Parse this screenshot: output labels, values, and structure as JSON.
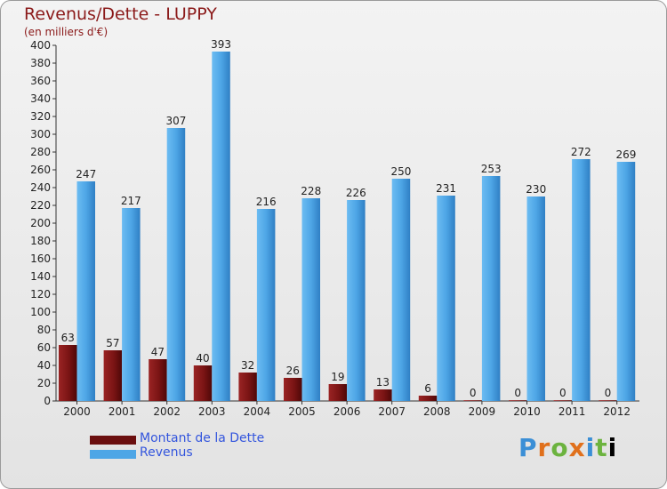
{
  "chart_data": {
    "type": "bar",
    "title": "Revenus/Dette - LUPPY",
    "subtitle": "(en milliers d'€)",
    "categories": [
      "2000",
      "2001",
      "2002",
      "2003",
      "2004",
      "2005",
      "2006",
      "2007",
      "2008",
      "2009",
      "2010",
      "2011",
      "2012"
    ],
    "series": [
      {
        "name": "Montant de la Dette",
        "color": "#7a1414",
        "values": [
          63,
          57,
          47,
          40,
          32,
          26,
          19,
          13,
          6,
          0,
          0,
          0,
          0
        ]
      },
      {
        "name": "Revenus",
        "color": "#4ea6e6",
        "values": [
          247,
          217,
          307,
          393,
          216,
          228,
          226,
          250,
          231,
          253,
          230,
          272,
          269
        ]
      }
    ],
    "ylim": [
      0,
      400
    ],
    "yticks": [
      0,
      20,
      40,
      60,
      80,
      100,
      120,
      140,
      160,
      180,
      200,
      220,
      240,
      260,
      280,
      300,
      320,
      340,
      360,
      380,
      400
    ],
    "grid": false,
    "legend": "bottom-left"
  },
  "legend": {
    "debt_label": "Montant de la Dette",
    "revenue_label": "Revenus"
  },
  "logo": {
    "text": "Proxiti"
  }
}
